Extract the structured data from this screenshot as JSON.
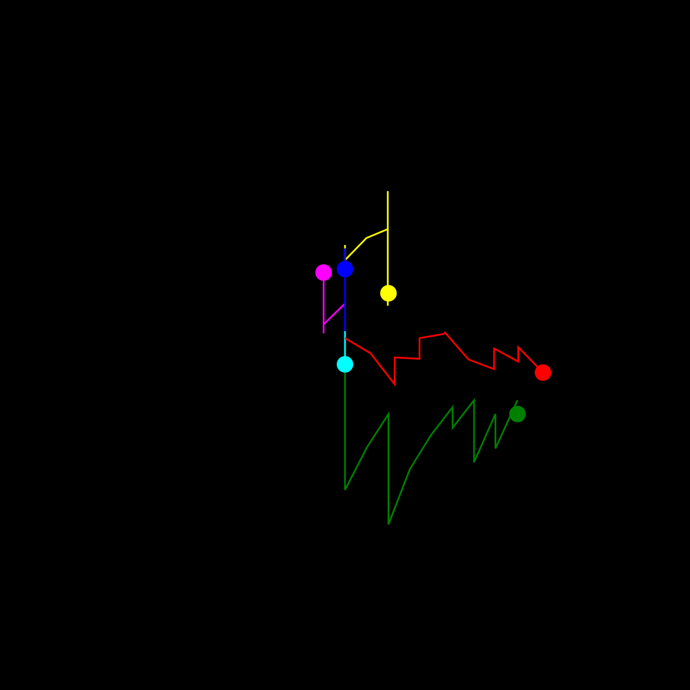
{
  "background": "#000000",
  "traces": [
    {
      "id": "yellow",
      "color": "#ffff00",
      "points": [
        [
          500,
          355
        ],
        [
          500,
          377
        ],
        [
          531,
          345
        ],
        [
          562,
          332
        ],
        [
          562,
          277
        ],
        [
          562,
          443
        ]
      ],
      "marker": [
        563,
        425
      ]
    },
    {
      "id": "magenta",
      "color": "#ff00ff",
      "points": [
        [
          469,
          395
        ],
        [
          469,
          483
        ],
        [
          469,
          470
        ],
        [
          500,
          440
        ]
      ],
      "marker": [
        469,
        395
      ]
    },
    {
      "id": "blue",
      "color": "#0000ff",
      "points": [
        [
          500,
          360
        ],
        [
          500,
          495
        ]
      ],
      "marker": [
        500,
        390
      ]
    },
    {
      "id": "cyan",
      "color": "#00ffff",
      "points": [
        [
          500,
          480
        ],
        [
          500,
          528
        ]
      ],
      "marker": [
        500,
        528
      ]
    },
    {
      "id": "red",
      "color": "#ff0000",
      "points": [
        [
          500,
          490
        ],
        [
          537,
          512
        ],
        [
          572,
          557
        ],
        [
          572,
          518
        ],
        [
          608,
          520
        ],
        [
          608,
          490
        ],
        [
          643,
          484
        ],
        [
          645,
          482
        ],
        [
          679,
          521
        ],
        [
          716,
          535
        ],
        [
          716,
          505
        ],
        [
          751,
          524
        ],
        [
          751,
          503
        ],
        [
          787,
          540
        ]
      ],
      "marker": [
        787,
        540
      ]
    },
    {
      "id": "green",
      "color": "#008000",
      "points": [
        [
          500,
          540
        ],
        [
          500,
          690
        ],
        [
          500,
          660
        ],
        [
          500,
          710
        ],
        [
          532,
          648
        ],
        [
          563,
          600
        ],
        [
          563,
          760
        ],
        [
          594,
          680
        ],
        [
          625,
          630
        ],
        [
          656,
          590
        ],
        [
          656,
          620
        ],
        [
          687,
          580
        ],
        [
          687,
          670
        ],
        [
          718,
          600
        ],
        [
          718,
          650
        ],
        [
          750,
          580
        ]
      ],
      "marker": [
        750,
        600
      ]
    }
  ]
}
